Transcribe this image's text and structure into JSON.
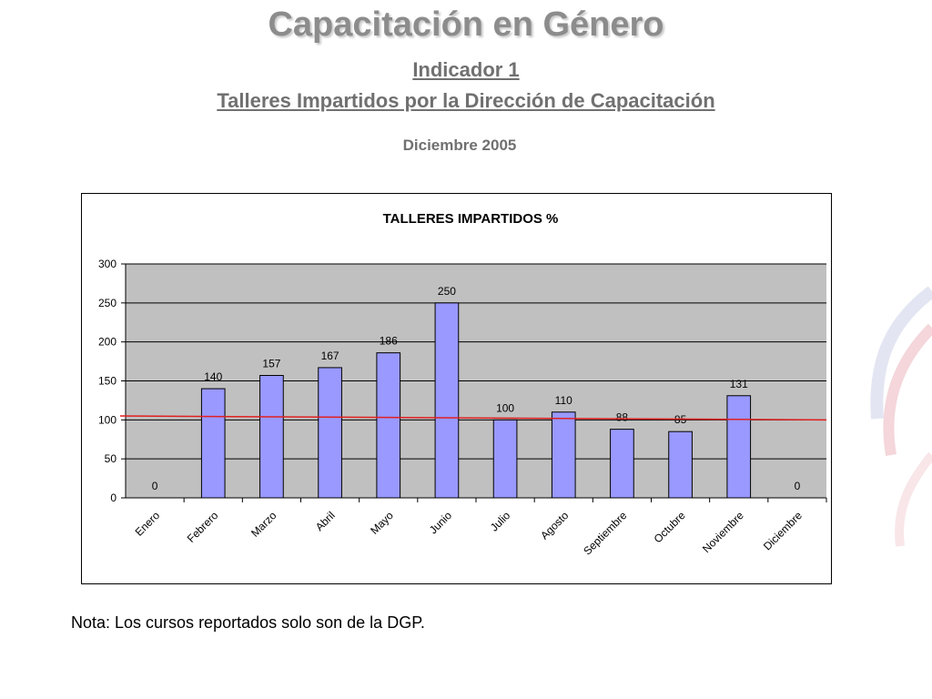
{
  "page": {
    "title": "Capacitación en Género",
    "subtitle1": "Indicador 1",
    "subtitle2": "Talleres Impartidos por la Dirección de Capacitación",
    "period": "Diciembre 2005",
    "note": "Nota: Los cursos reportados solo son de la DGP."
  },
  "chart_data": {
    "type": "bar",
    "title": "TALLERES IMPARTIDOS %",
    "xlabel": "",
    "ylabel": "",
    "categories": [
      "Enero",
      "Febrero",
      "Marzo",
      "Abril",
      "Mayo",
      "Junio",
      "Julio",
      "Agosto",
      "Septiembre",
      "Octubre",
      "Noviembre",
      "Diciembre"
    ],
    "values": [
      0,
      140,
      157,
      167,
      186,
      250,
      100,
      110,
      88,
      85,
      131,
      0
    ],
    "ylim": [
      0,
      300
    ],
    "yticks": [
      0,
      50,
      100,
      150,
      200,
      250,
      300
    ],
    "grid": true,
    "trendline": {
      "start": 105,
      "end": 100
    },
    "colors": {
      "bar": "#9999ff",
      "plot_bg": "#c0c0c0",
      "trendline": "#e02020"
    }
  }
}
